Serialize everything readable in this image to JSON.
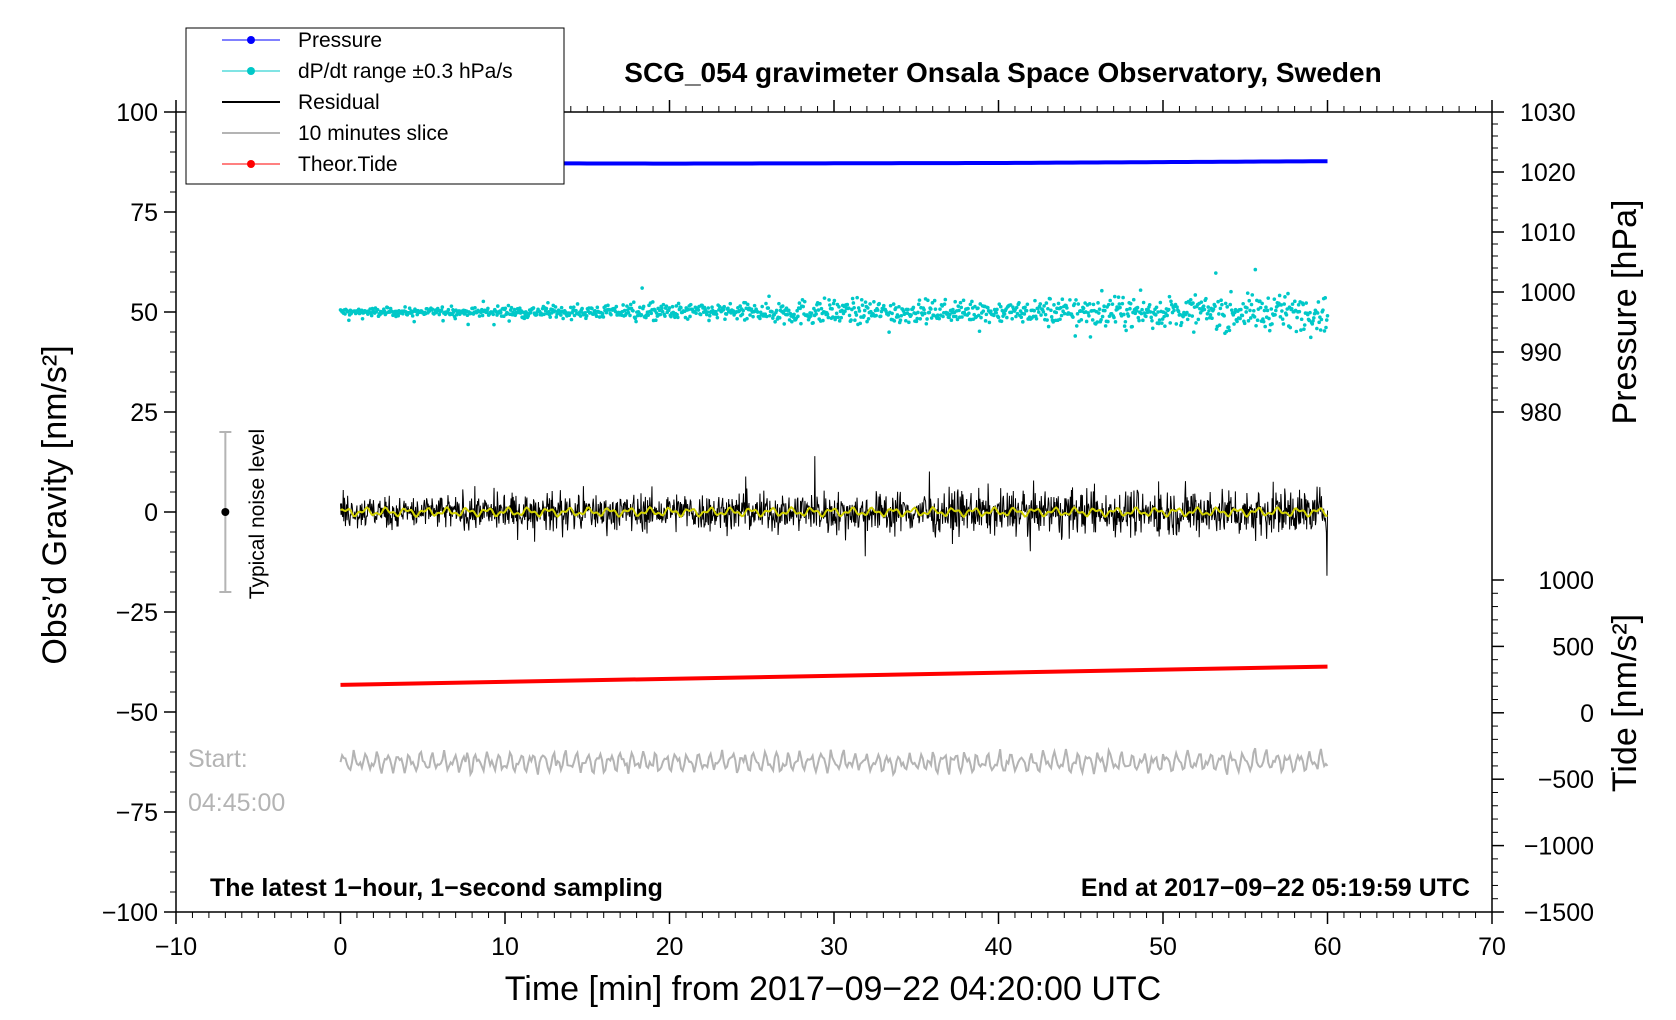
{
  "chart_data": {
    "type": "line",
    "title": "SCG_054 gravimeter Onsala Space Observatory, Sweden",
    "xlabel": "Time [min] from 2017−09−22 04:20:00 UTC",
    "ylabel_left": "Obs’d Gravity [nm/s²]",
    "ylabel_right_pressure": "Pressure [hPa]",
    "ylabel_right_tide": "Tide [nm/s²]",
    "xlim": [
      -10,
      70
    ],
    "ylim_left": [
      -100,
      100
    ],
    "pressure_axis_range": [
      980,
      1030
    ],
    "tide_axis_range": [
      -1500,
      1000
    ],
    "x_ticks": [
      "−10",
      "0",
      "10",
      "20",
      "30",
      "40",
      "50",
      "60",
      "70"
    ],
    "y_ticks_left": [
      "100",
      "75",
      "50",
      "25",
      "0",
      "−25",
      "−50",
      "−75",
      "−100"
    ],
    "pressure_ticks": [
      "1030",
      "1020",
      "1010",
      "1000",
      "990",
      "980"
    ],
    "tide_ticks": [
      "1000",
      "500",
      "0",
      "−500",
      "−1000",
      "−1500"
    ],
    "legend_position": "top-left",
    "legend": [
      {
        "label": "Pressure",
        "color": "#0000ff",
        "marker": "dot"
      },
      {
        "label": "dP/dt range ±0.3 hPa/s",
        "color": "#00c8c8",
        "marker": "dot"
      },
      {
        "label": "Residual",
        "color": "#000000",
        "marker": "none"
      },
      {
        "label": "10 minutes slice",
        "color": "#b4b4b4",
        "marker": "none"
      },
      {
        "label": "Theor.Tide",
        "color": "#ff0000",
        "marker": "dot"
      }
    ],
    "series": [
      {
        "name": "Pressure",
        "axis": "pressure",
        "color": "#0000ff",
        "x": [
          0,
          20,
          40,
          60
        ],
        "y": [
          1021.5,
          1021.4,
          1021.5,
          1021.8
        ]
      },
      {
        "name": "dP/dt range ±0.3 hPa/s",
        "axis": "left",
        "color": "#00c8c8",
        "center": 50,
        "x_range": [
          0,
          60
        ],
        "spread_left_units": [
          1,
          1.5,
          2,
          3,
          2.5,
          3.5,
          4
        ]
      },
      {
        "name": "Residual",
        "axis": "left",
        "color": "#000000",
        "center": 0,
        "x_range": [
          0,
          60
        ],
        "amplitude": 3.5
      },
      {
        "name": "smoothed residual",
        "axis": "left",
        "color": "#d2d200",
        "center": 0,
        "x_range": [
          0,
          60
        ],
        "amplitude": 1.2
      },
      {
        "name": "Theor.Tide",
        "axis": "tide",
        "color": "#ff0000",
        "x": [
          0,
          60
        ],
        "y": [
          210,
          348
        ]
      },
      {
        "name": "10 minutes slice",
        "axis": "left",
        "color": "#b4b4b4",
        "center": -62.5,
        "x_range": [
          0,
          60
        ],
        "amplitude": 3
      }
    ],
    "noise_bar": {
      "label": "Typical noise level",
      "x": -7,
      "center": 0,
      "half_range": 20
    },
    "annotations": {
      "start_label": "Start:",
      "start_time": "04:45:00",
      "bottom_left": "The latest 1−hour, 1−second sampling",
      "bottom_right": "End at 2017−09−22 05:19:59 UTC"
    },
    "grid": false
  }
}
